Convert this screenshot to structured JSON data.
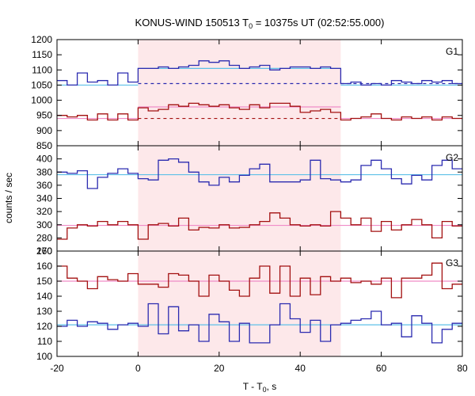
{
  "chart_data": {
    "type": "line",
    "title_main": "KONUS-WIND 150513 T",
    "title_sub": "0",
    "title_rest": " = 10375s UT (02:52:55.000)",
    "xlabel_main": "T - T",
    "xlabel_sub": "0",
    "xlabel_rest": ", s",
    "ylabel": "counts / sec",
    "xlim": [
      -20,
      80
    ],
    "x_ticks": [
      -20,
      0,
      20,
      40,
      60,
      80
    ],
    "highlight": {
      "x": [
        0,
        50
      ],
      "color": "#fde8ea"
    },
    "colors": {
      "blue": "#2b2bb0",
      "red": "#a31010",
      "lightblue": "#5ec0e8",
      "pink": "#f08cc8"
    },
    "bin_edges": [
      -20,
      -17.5,
      -15,
      -12.5,
      -10,
      -7.5,
      -5,
      -2.5,
      0,
      2.5,
      5,
      7.5,
      10,
      12.5,
      15,
      17.5,
      20,
      22.5,
      25,
      27.5,
      30,
      32.5,
      35,
      37.5,
      40,
      42.5,
      45,
      47.5,
      50,
      52.5,
      55,
      57.5,
      60,
      62.5,
      65,
      67.5,
      70,
      72.5,
      75,
      77.5,
      80
    ],
    "panels": [
      {
        "label": "G1",
        "ylim": [
          850,
          1200
        ],
        "y_ticks": [
          850,
          900,
          950,
          1000,
          1050,
          1100,
          1150,
          1200
        ],
        "series": [
          {
            "color": "blue",
            "values": [
              1065,
              1050,
              1090,
              1060,
              1065,
              1050,
              1090,
              1060,
              1105,
              1105,
              1110,
              1105,
              1110,
              1115,
              1130,
              1125,
              1130,
              1115,
              1105,
              1110,
              1115,
              1100,
              1105,
              1110,
              1110,
              1105,
              1110,
              1105,
              1055,
              1060,
              1050,
              1055,
              1050,
              1065,
              1060,
              1055,
              1065,
              1060,
              1065,
              1055
            ]
          },
          {
            "color": "red",
            "values": [
              950,
              945,
              950,
              935,
              955,
              935,
              955,
              935,
              975,
              965,
              970,
              985,
              980,
              990,
              985,
              980,
              985,
              975,
              970,
              985,
              975,
              990,
              990,
              980,
              960,
              965,
              970,
              960,
              935,
              940,
              945,
              955,
              940,
              935,
              945,
              940,
              945,
              935,
              945,
              940
            ]
          }
        ],
        "backgrounds": [
          {
            "color": "lightblue",
            "segments": [
              {
                "x": [
                  -20,
                  0
                ],
                "y": 1050
              },
              {
                "x": [
                  0,
                  50
                ],
                "y": 1105
              },
              {
                "x": [
                  50,
                  80
                ],
                "y": 1050
              }
            ]
          },
          {
            "color": "pink",
            "segments": [
              {
                "x": [
                  -20,
                  0
                ],
                "y": 940
              },
              {
                "x": [
                  0,
                  50
                ],
                "y": 978
              },
              {
                "x": [
                  50,
                  80
                ],
                "y": 940
              }
            ]
          }
        ],
        "dashed": [
          {
            "color": "blue",
            "x": [
              0,
              80
            ],
            "y": 1055
          },
          {
            "color": "red",
            "x": [
              0,
              50
            ],
            "y": 940
          }
        ]
      },
      {
        "label": "G2",
        "ylim": [
          260,
          420
        ],
        "y_ticks": [
          260,
          280,
          300,
          320,
          340,
          360,
          380,
          400
        ],
        "series": [
          {
            "color": "blue",
            "values": [
              380,
              378,
              382,
              355,
              372,
              378,
              385,
              378,
              370,
              368,
              398,
              400,
              395,
              380,
              365,
              360,
              372,
              365,
              375,
              385,
              392,
              365,
              365,
              365,
              368,
              398,
              370,
              368,
              365,
              368,
              390,
              398,
              385,
              370,
              362,
              375,
              368,
              390,
              398,
              385
            ]
          },
          {
            "color": "red",
            "values": [
              278,
              295,
              300,
              298,
              305,
              300,
              305,
              300,
              278,
              300,
              302,
              298,
              310,
              292,
              296,
              295,
              300,
              295,
              296,
              300,
              305,
              318,
              310,
              300,
              298,
              300,
              298,
              320,
              310,
              300,
              310,
              290,
              305,
              292,
              300,
              308,
              300,
              280,
              305,
              298
            ]
          }
        ],
        "backgrounds": [
          {
            "color": "lightblue",
            "segments": [
              {
                "x": [
                  -20,
                  80
                ],
                "y": 376
              }
            ]
          },
          {
            "color": "pink",
            "segments": [
              {
                "x": [
                  -20,
                  80
                ],
                "y": 299
              }
            ]
          }
        ],
        "dashed": []
      },
      {
        "label": "G3",
        "ylim": [
          100,
          170
        ],
        "y_ticks": [
          100,
          110,
          120,
          130,
          140,
          150,
          160,
          170
        ],
        "series": [
          {
            "color": "blue",
            "values": [
              120,
              124,
              120,
              123,
              122,
              118,
              121,
              122,
              120,
              135,
              115,
              133,
              117,
              121,
              110,
              128,
              123,
              110,
              122,
              109,
              109,
              121,
              135,
              125,
              116,
              124,
              110,
              121,
              122,
              124,
              125,
              130,
              121,
              122,
              113,
              127,
              122,
              109,
              118,
              122
            ]
          },
          {
            "color": "red",
            "values": [
              160,
              152,
              150,
              145,
              153,
              151,
              150,
              155,
              148,
              148,
              146,
              155,
              154,
              150,
              140,
              154,
              150,
              144,
              140,
              152,
              160,
              142,
              160,
              140,
              152,
              141,
              153,
              150,
              152,
              149,
              150,
              148,
              152,
              139,
              152,
              152,
              154,
              162,
              145,
              148
            ]
          }
        ],
        "backgrounds": [
          {
            "color": "lightblue",
            "segments": [
              {
                "x": [
                  -20,
                  80
                ],
                "y": 121
              }
            ]
          },
          {
            "color": "pink",
            "segments": [
              {
                "x": [
                  -20,
                  80
                ],
                "y": 150
              }
            ]
          }
        ],
        "dashed": []
      }
    ]
  }
}
